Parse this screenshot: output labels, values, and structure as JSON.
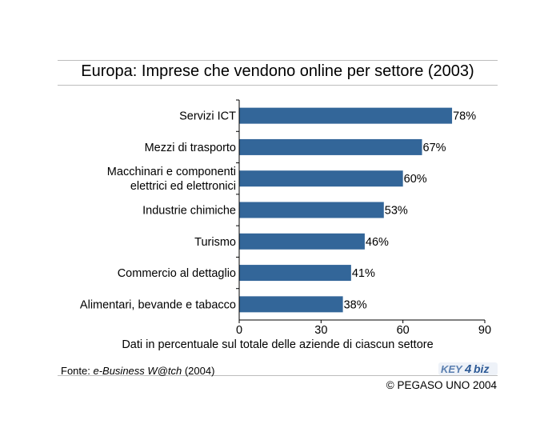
{
  "title": "Europa: Imprese che vendono online per settore (2003)",
  "chart_data": {
    "type": "bar",
    "orientation": "horizontal",
    "categories": [
      [
        "Servizi ICT"
      ],
      [
        "Mezzi di trasporto"
      ],
      [
        "Macchinari e componenti",
        "elettrici ed elettronici"
      ],
      [
        "Industrie chimiche"
      ],
      [
        "Turismo"
      ],
      [
        "Commercio al dettaglio"
      ],
      [
        "Alimentari, bevande e tabacco"
      ]
    ],
    "values": [
      78,
      67,
      60,
      53,
      46,
      41,
      38
    ],
    "value_labels": [
      "78%",
      "67%",
      "60%",
      "53%",
      "46%",
      "41%",
      "38%"
    ],
    "xlabel": "Dati in percentuale sul totale delle aziende di ciascun settore",
    "xlim": [
      0,
      90
    ],
    "xticks": [
      0,
      30,
      60,
      90
    ],
    "bar_color": "#336699",
    "grid": false
  },
  "source": {
    "prefix": "Fonte: ",
    "name": "e-Business W@tch",
    "suffix": " (2004)"
  },
  "logo": {
    "part1": "KEY",
    "part2": "4",
    "part3": "biz"
  },
  "copyright": "© PEGASO UNO 2004"
}
